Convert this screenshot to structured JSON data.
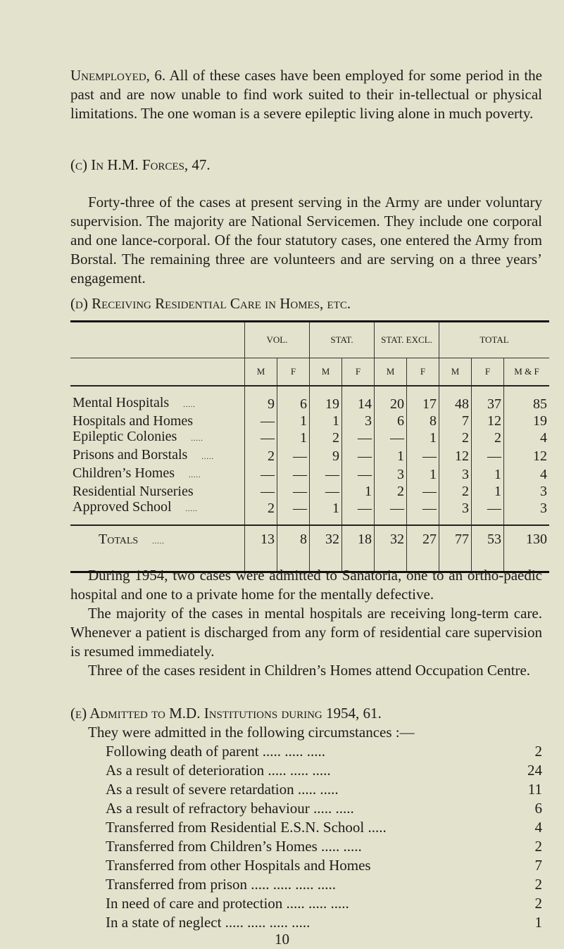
{
  "unemployed": {
    "heading": "Unemployed, 6.",
    "text": "All of these cases have been employed for some period in the past and are now unable to find work suited to their in-tellectual or physical limitations. The one woman is a severe epileptic living alone in much poverty."
  },
  "forces": {
    "heading": "(c) In H.M. Forces, 47.",
    "text": "Forty-three of the cases at present serving in the Army are under voluntary supervision. The majority are National Servicemen. They include one corporal and one lance-corporal. Of the four statutory cases, one entered the Army from Borstal. The remaining three are volunteers and are serving on a three years’ engagement."
  },
  "residential": {
    "heading": "(d) Receiving Residential Care in Homes, etc.",
    "groups": [
      "VOL.",
      "STAT.",
      "STAT. EXCL.",
      "TOTAL"
    ],
    "subheaders": [
      "M",
      "F",
      "M",
      "F",
      "M",
      "F",
      "M",
      "F",
      "M & F"
    ],
    "rows": [
      {
        "label": "Mental Hospitals",
        "dots": ".....",
        "values": [
          "9",
          "6",
          "19",
          "14",
          "20",
          "17",
          "48",
          "37",
          "85"
        ]
      },
      {
        "label": "Hospitals and Homes",
        "dots": "",
        "values": [
          "—",
          "1",
          "1",
          "3",
          "6",
          "8",
          "7",
          "12",
          "19"
        ]
      },
      {
        "label": "Epileptic Colonies",
        "dots": ".....",
        "values": [
          "—",
          "1",
          "2",
          "—",
          "—",
          "1",
          "2",
          "2",
          "4"
        ]
      },
      {
        "label": "Prisons and Borstals",
        "dots": ".....",
        "values": [
          "2",
          "—",
          "9",
          "—",
          "1",
          "—",
          "12",
          "—",
          "12"
        ]
      },
      {
        "label": "Children’s Homes",
        "dots": ".....",
        "values": [
          "—",
          "—",
          "—",
          "—",
          "3",
          "1",
          "3",
          "1",
          "4"
        ]
      },
      {
        "label": "Residential Nurseries",
        "dots": "",
        "values": [
          "—",
          "—",
          "—",
          "1",
          "2",
          "—",
          "2",
          "1",
          "3"
        ]
      },
      {
        "label": "Approved School",
        "dots": ".....",
        "values": [
          "2",
          "—",
          "1",
          "—",
          "—",
          "—",
          "3",
          "—",
          "3"
        ]
      }
    ],
    "totals": {
      "label": "Totals",
      "dots": ".....",
      "values": [
        "13",
        "8",
        "32",
        "18",
        "32",
        "27",
        "77",
        "53",
        "130"
      ]
    }
  },
  "paragraphs": [
    "During 1954, two cases were admitted to Sanatoria, one to an ortho-paedic hospital and one to a private home for the mentally defective.",
    "The majority of the cases in mental hospitals are receiving long-term care. Whenever a patient is discharged from any form of residential care supervision is resumed immediately.",
    "Three of the cases resident in Children’s Homes attend Occupation Centre."
  ],
  "admitted": {
    "heading": "(e) Admitted to M.D. Institutions during 1954, 61.",
    "intro": "They were admitted in the following circumstances :—",
    "items": [
      {
        "label": "Following death of parent ..... ..... .....",
        "value": "2"
      },
      {
        "label": "As a result of deterioration ..... ..... .....",
        "value": "24"
      },
      {
        "label": "As a result of severe retardation ..... .....",
        "value": "11"
      },
      {
        "label": "As a result of refractory behaviour ..... .....",
        "value": "6"
      },
      {
        "label": "Transferred from Residential E.S.N. School .....",
        "value": "4"
      },
      {
        "label": "Transferred from Children’s Homes ..... .....",
        "value": "2"
      },
      {
        "label": "Transferred from other Hospitals and Homes",
        "value": "7"
      },
      {
        "label": "Transferred from prison ..... ..... ..... .....",
        "value": "2"
      },
      {
        "label": "In need of care and protection ..... ..... .....",
        "value": "2"
      },
      {
        "label": "In a state of neglect ..... ..... ..... .....",
        "value": "1"
      }
    ]
  },
  "page_number": "10"
}
